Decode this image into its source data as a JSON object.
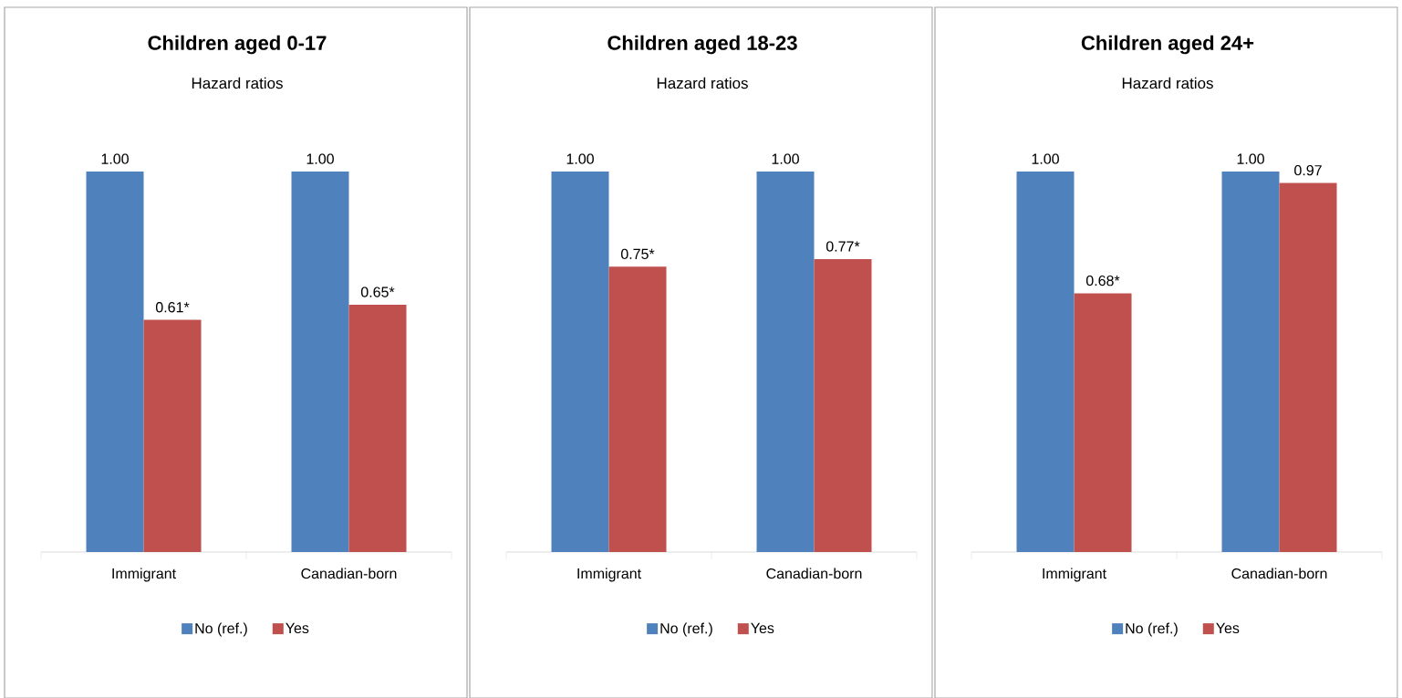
{
  "chart_data": [
    {
      "type": "bar",
      "title": "Children aged 0-17",
      "subtitle": "Hazard ratios",
      "categories": [
        "Immigrant",
        "Canadian-born"
      ],
      "legend": "bottom",
      "series": [
        {
          "name": "No (ref.)",
          "color": "#4f81bd",
          "values": [
            1.0,
            1.0
          ],
          "value_labels": [
            "1.00",
            "1.00"
          ]
        },
        {
          "name": "Yes",
          "color": "#c0504d",
          "values": [
            0.61,
            0.65
          ],
          "value_labels": [
            "0.61*",
            "0.65*"
          ]
        }
      ]
    },
    {
      "type": "bar",
      "title": "Children aged 18-23",
      "subtitle": "Hazard ratios",
      "categories": [
        "Immigrant",
        "Canadian-born"
      ],
      "legend": "bottom",
      "series": [
        {
          "name": "No (ref.)",
          "color": "#4f81bd",
          "values": [
            1.0,
            1.0
          ],
          "value_labels": [
            "1.00",
            "1.00"
          ]
        },
        {
          "name": "Yes",
          "color": "#c0504d",
          "values": [
            0.75,
            0.77
          ],
          "value_labels": [
            "0.75*",
            "0.77*"
          ]
        }
      ]
    },
    {
      "type": "bar",
      "title": "Children aged 24+",
      "subtitle": "Hazard ratios",
      "categories": [
        "Immigrant",
        "Canadian-born"
      ],
      "legend": "bottom",
      "series": [
        {
          "name": "No (ref.)",
          "color": "#4f81bd",
          "values": [
            1.0,
            1.0
          ],
          "value_labels": [
            "1.00",
            "1.00"
          ]
        },
        {
          "name": "Yes",
          "color": "#c0504d",
          "values": [
            0.68,
            0.97
          ],
          "value_labels": [
            "0.68*",
            "0.97"
          ]
        }
      ]
    }
  ]
}
